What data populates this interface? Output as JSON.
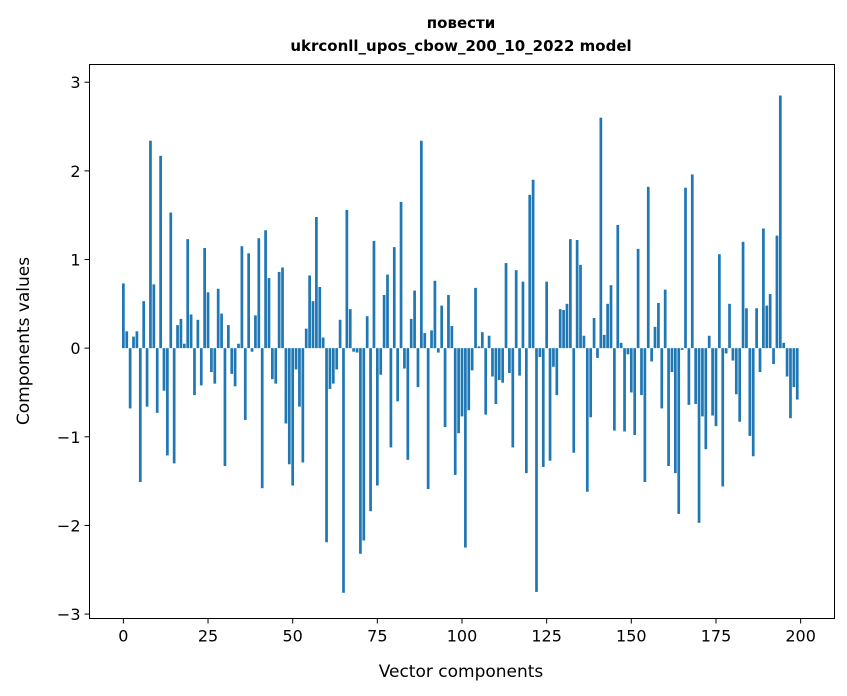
{
  "chart_data": {
    "type": "bar",
    "title_line1": "повести",
    "title_line2": "ukrconll_upos_cbow_200_10_2022 model",
    "xlabel": "Vector components",
    "ylabel": "Components values",
    "xlim": [
      -10,
      210
    ],
    "ylim": [
      -3.05,
      3.2
    ],
    "xticks": [
      0,
      25,
      50,
      75,
      100,
      125,
      150,
      175,
      200
    ],
    "yticks": [
      -3,
      -2,
      -1,
      0,
      1,
      2,
      3
    ],
    "ytick_labels": [
      "−3",
      "−2",
      "−1",
      "0",
      "1",
      "2",
      "3"
    ],
    "grid": false,
    "bar_color": "#1f77b4",
    "values": [
      0.73,
      0.19,
      -0.68,
      0.13,
      0.19,
      -1.51,
      0.53,
      -0.66,
      2.34,
      0.72,
      -0.73,
      2.17,
      -0.48,
      -1.21,
      1.53,
      -1.3,
      0.26,
      0.33,
      0.05,
      1.23,
      0.38,
      -0.53,
      0.32,
      -0.42,
      1.13,
      0.63,
      -0.27,
      -0.4,
      0.67,
      0.39,
      -1.33,
      0.26,
      -0.29,
      -0.43,
      0.05,
      1.15,
      -0.81,
      1.07,
      -0.04,
      0.37,
      1.24,
      -1.58,
      1.33,
      0.79,
      -0.35,
      -0.4,
      0.86,
      0.91,
      -0.85,
      -1.31,
      -1.55,
      -0.24,
      -0.66,
      -1.29,
      0.22,
      0.82,
      0.53,
      1.48,
      0.69,
      0.12,
      -2.19,
      -0.46,
      -0.4,
      -0.24,
      0.32,
      -2.76,
      1.56,
      0.44,
      -0.04,
      -0.05,
      -2.32,
      -2.17,
      0.36,
      -1.84,
      1.21,
      -1.55,
      -0.3,
      0.6,
      0.83,
      -1.12,
      1.14,
      -0.6,
      1.65,
      -0.23,
      -1.26,
      0.33,
      0.65,
      -0.44,
      2.34,
      0.17,
      -1.59,
      0.2,
      0.76,
      -0.05,
      0.48,
      -0.89,
      0.6,
      0.25,
      -1.43,
      -0.96,
      -0.77,
      -2.25,
      -0.7,
      -0.25,
      0.68,
      0.02,
      0.18,
      -0.75,
      0.14,
      -0.32,
      -0.63,
      -0.36,
      -0.39,
      0.96,
      -0.28,
      -1.12,
      0.88,
      -0.31,
      0.75,
      -1.41,
      1.73,
      1.9,
      -2.75,
      -0.1,
      -1.34,
      0.75,
      -1.27,
      -0.21,
      -0.53,
      0.44,
      0.43,
      0.5,
      1.23,
      -1.18,
      1.22,
      0.94,
      0.14,
      -1.62,
      -0.78,
      0.34,
      -0.11,
      2.6,
      0.15,
      0.5,
      0.71,
      -0.93,
      1.39,
      0.06,
      -0.94,
      -0.07,
      -0.5,
      -0.98,
      1.12,
      -0.53,
      -1.51,
      1.82,
      -0.15,
      0.24,
      0.51,
      -0.68,
      0.66,
      -1.33,
      -0.27,
      -1.41,
      -1.87,
      -0.02,
      1.81,
      -0.64,
      1.96,
      -0.63,
      -1.97,
      -0.77,
      -1.14,
      0.14,
      -0.76,
      -0.88,
      1.06,
      -1.56,
      -0.06,
      0.5,
      -0.14,
      -0.52,
      -0.83,
      1.2,
      0.45,
      -0.99,
      -1.22,
      0.45,
      -0.27,
      1.35,
      0.48,
      0.61,
      -0.18,
      1.27,
      2.85,
      0.06,
      -0.32,
      -0.79,
      -0.44,
      -0.58
    ]
  }
}
